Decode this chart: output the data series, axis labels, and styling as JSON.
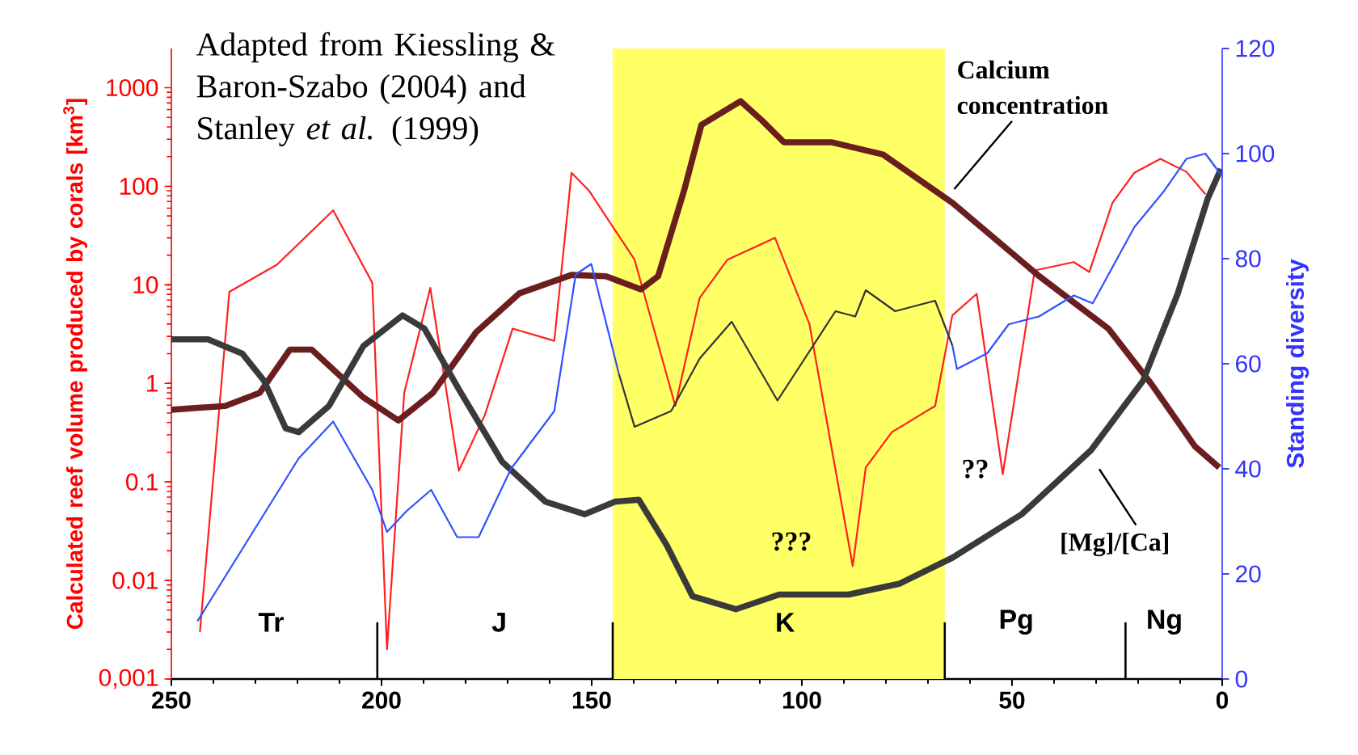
{
  "chart_data": {
    "type": "line",
    "ylabel": "Calculated reef volume produced by corals [km$^{3}$]",
    "y2label": "Standing diversity",
    "annotations": [
      "Adapted from Kiessling & Baron-Szabo (2004) and Stanley *et al.* (1999)",
      "???",
      "??",
      "Tr",
      "J",
      "K",
      "Pg",
      "Ng"
    ],
    "xlim": [
      250,
      0
    ],
    "xticks": [
      250,
      200,
      150,
      100,
      50,
      0
    ],
    "ylim": [
      0.001,
      2500
    ],
    "log": "y",
    "yticks": [
      {
        "value": 0.001,
        "label": "0,001"
      },
      0.01,
      0.1,
      1,
      10,
      100,
      1000
    ],
    "y2lim": [
      0,
      120
    ],
    "y2ticks": [
      0,
      20,
      40,
      60,
      80,
      100,
      120
    ],
    "bands": [
      {
        "axis": "x",
        "from": 145,
        "to": 66,
        "color": "#ffff66"
      }
    ],
    "ref_lines": [
      {
        "axis": "x",
        "value": 201
      },
      {
        "axis": "x",
        "value": 145
      },
      {
        "axis": "x",
        "value": 66
      },
      {
        "axis": "x",
        "value": 23
      }
    ],
    "series": [
      {
        "color": "#ff2020",
        "x": [
          243.2,
          236.2,
          224.9,
          211.5,
          202.2,
          198.7,
          194.6,
          188.4,
          181.6,
          175.4,
          168.8,
          158.9,
          154.8,
          150.7,
          139.8,
          130.1,
          124.3,
          117.7,
          106.4,
          98.2,
          87.9,
          84.8,
          78.6,
          68.3,
          64.2,
          58.4,
          52.2,
          44.6,
          35.3,
          31.6,
          26.1,
          20.9,
          14.7,
          8.5,
          4.0
        ],
        "values": [
          0.003,
          8.5,
          16,
          57,
          10.5,
          0.002,
          0.8,
          9.3,
          0.13,
          0.48,
          3.6,
          2.7,
          137,
          91,
          18,
          0.59,
          7.4,
          18,
          30,
          4.0,
          0.014,
          0.14,
          0.32,
          0.59,
          4.9,
          8.1,
          0.12,
          14,
          17,
          13.5,
          68,
          137,
          190,
          140,
          83
        ]
      },
      {
        "color": "#3050ff",
        "axis": "y2",
        "x": [
          243.8,
          219.7,
          211.5,
          202.2,
          198.7,
          194.0,
          188.2,
          182.0,
          176.9,
          169.2,
          158.9,
          153.8,
          150.1,
          143.5,
          100,
          64.2,
          63.1,
          55.9,
          50.8,
          43.6,
          35.3,
          30.8,
          20.9,
          13.7,
          8.5,
          4.0,
          0.3
        ],
        "values": [
          11,
          42,
          49,
          36,
          28,
          32,
          36,
          27,
          27,
          40,
          51,
          77,
          79,
          58,
          null,
          63.5,
          59,
          62,
          67.5,
          69,
          73,
          71.5,
          86,
          93,
          99,
          100,
          96
        ]
      },
      {
        "color": "#333333",
        "axis": "y2",
        "x": [
          143.5,
          139.8,
          131.1,
          124.3,
          116.7,
          105.8,
          92.0,
          87.3,
          84.8,
          77.8,
          68.3,
          64.2
        ],
        "values": [
          58,
          48,
          51,
          61,
          68,
          53,
          70,
          69,
          74,
          70,
          72,
          63.5
        ]
      },
      {
        "name": "Calcium concentration",
        "color": "#6b1e1e",
        "x": [
          250,
          237.2,
          229,
          221.8,
          216.6,
          204.3,
          196,
          187.8,
          177.5,
          167.2,
          154.8,
          146.6,
          138.3,
          134.2,
          128,
          123.9,
          114.6,
          109.5,
          104.3,
          93,
          80.7,
          64.2,
          43.6,
          27.1,
          16.8,
          6.5,
          0.7
        ],
        "values": [
          0.54,
          0.59,
          0.8,
          2.2,
          2.2,
          0.72,
          0.42,
          0.8,
          3.3,
          8.2,
          12.6,
          12.2,
          9,
          12.2,
          91,
          420,
          730,
          465,
          280,
          280,
          210,
          68,
          12.3,
          3.6,
          0.98,
          0.23,
          0.14
        ]
      },
      {
        "name": "[Mg]/[Ca]",
        "color": "#3a3a3a",
        "x": [
          250,
          241.3,
          233.1,
          228,
          222.8,
          219.7,
          212.5,
          204.3,
          195,
          189.8,
          181.6,
          171.3,
          161,
          151.7,
          144.5,
          138.8,
          132.2,
          126,
          115.7,
          105.4,
          88.9,
          76.7,
          64.2,
          47.7,
          31.2,
          18.8,
          10.6,
          3.4,
          0.3
        ],
        "values": [
          2.8,
          2.8,
          2.0,
          1.07,
          0.35,
          0.32,
          0.59,
          2.4,
          4.9,
          3.6,
          0.87,
          0.16,
          0.063,
          0.047,
          0.063,
          0.066,
          0.023,
          0.0069,
          0.0051,
          0.0072,
          0.0072,
          0.0093,
          0.017,
          0.047,
          0.21,
          1.07,
          8.1,
          76,
          150
        ]
      }
    ]
  }
}
